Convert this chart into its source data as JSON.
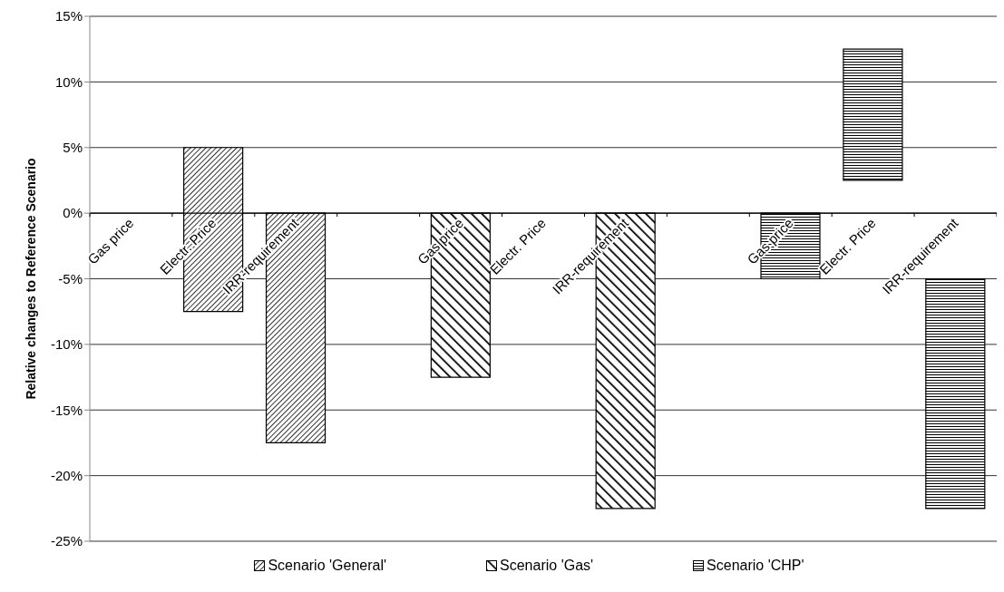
{
  "chart_data": {
    "type": "bar",
    "ylabel": "Relative changes to Reference Scenario",
    "categories": [
      "Gas price",
      "Electr. Price",
      "IRR-requirement",
      null,
      "Gas price",
      "Electr. Price",
      "IRR-requirement",
      null,
      "Gas price",
      "Electr. Price",
      "IRR-requirement"
    ],
    "series": [
      {
        "name": "Scenario 'General'",
        "color": "#000000",
        "values": [
          null,
          12.5,
          -17.5,
          null,
          null,
          null,
          null,
          null,
          null,
          null,
          null
        ],
        "base": [
          null,
          -7.5,
          0,
          null,
          null,
          null,
          null,
          null,
          null,
          null,
          null
        ]
      },
      {
        "name": "Scenario 'Gas'",
        "color": "#000000",
        "values": [
          null,
          null,
          null,
          null,
          -12.5,
          null,
          -22.5,
          null,
          null,
          null,
          null
        ],
        "base": [
          null,
          null,
          null,
          null,
          0,
          null,
          0,
          null,
          null,
          null,
          null
        ]
      },
      {
        "name": "Scenario 'CHP'",
        "color": "#000000",
        "values": [
          null,
          null,
          null,
          null,
          null,
          null,
          null,
          null,
          -5,
          10,
          -17.5
        ],
        "base": [
          null,
          null,
          null,
          null,
          null,
          null,
          null,
          null,
          0,
          2.5,
          -5
        ]
      }
    ],
    "ylim": [
      -25,
      15
    ],
    "yticks": [
      {
        "value": -25,
        "label": "-25%"
      },
      {
        "value": -20,
        "label": "-20%"
      },
      {
        "value": -15,
        "label": "-15%"
      },
      {
        "value": -10,
        "label": "-10%"
      },
      {
        "value": -5,
        "label": "-5%"
      },
      {
        "value": 0,
        "label": "0%"
      },
      {
        "value": 5,
        "label": "5%"
      },
      {
        "value": 10,
        "label": "10%"
      },
      {
        "value": 15,
        "label": "15%"
      }
    ],
    "grid": "y",
    "legend": "bottom"
  }
}
